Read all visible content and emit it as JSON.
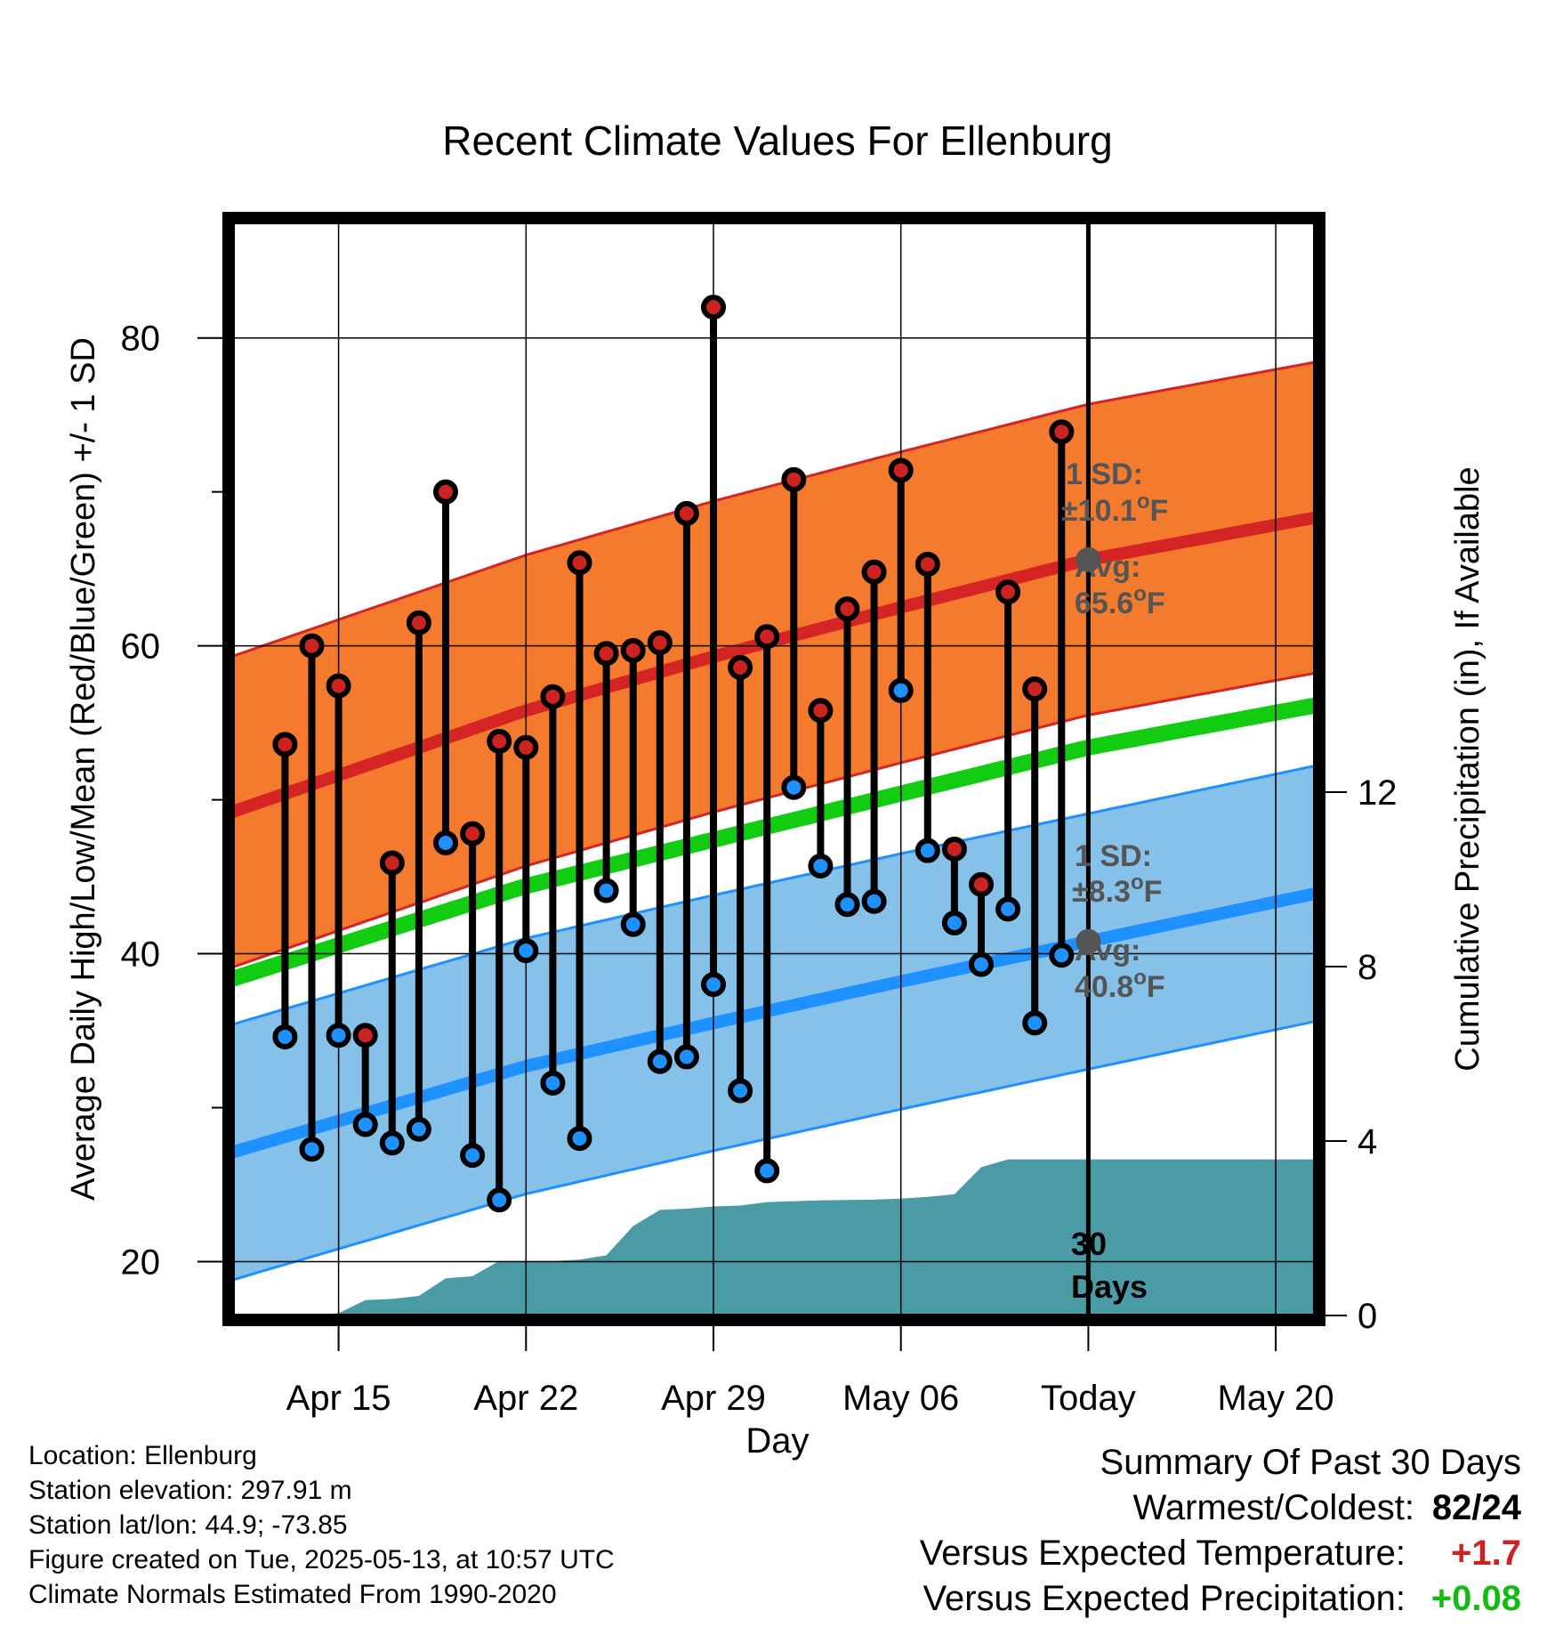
{
  "chart_data": {
    "type": "line",
    "title": "Recent Climate Values For Ellenburg",
    "xlabel": "Day",
    "ylabel": "Average Daily High/Low/Mean (Red/Blue/Green) +/- 1 SD",
    "y2label": "Cumulative Precipitation (in), If Available",
    "x_tick_labels": [
      "Apr 15",
      "Apr 22",
      "Apr 29",
      "May 06",
      "Today",
      "May 20"
    ],
    "ylim": [
      16.5,
      87.5
    ],
    "y_ticks": [
      20,
      40,
      60,
      80
    ],
    "y2lim": [
      0,
      20
    ],
    "y2_ticks": [
      0,
      4,
      8,
      12
    ],
    "grid": true,
    "today_marker": "May 13",
    "today_days_label": [
      "30",
      "Days"
    ],
    "normal_high": {
      "name": "Avg High",
      "x": [
        "Apr 12",
        "Apr 22",
        "Apr 29",
        "May 06",
        "May 13",
        "May 22"
      ],
      "mean": [
        49.8,
        55.8,
        59.3,
        62.5,
        65.6,
        68.5
      ],
      "sd": 10.1,
      "annotation": {
        "sd_label": "1 SD:",
        "sd_value": "±10.1°F",
        "avg_label": "Avg:",
        "avg_value": "65.6°F"
      }
    },
    "normal_low": {
      "name": "Avg Low",
      "x": [
        "Apr 12",
        "Apr 22",
        "Apr 29",
        "May 06",
        "May 13",
        "May 22"
      ],
      "mean": [
        27.6,
        32.7,
        35.5,
        38.2,
        40.8,
        44.1
      ],
      "sd": 8.3,
      "annotation": {
        "sd_label": "1 SD:",
        "sd_value": "±8.3°F",
        "avg_label": "Avg:",
        "avg_value": "40.8°F"
      }
    },
    "normal_mean": {
      "name": "Avg Mean",
      "x": [
        "Apr 12",
        "Apr 22",
        "Apr 29",
        "May 06",
        "May 13",
        "May 22"
      ],
      "values": [
        38.9,
        44.4,
        47.4,
        50.4,
        53.4,
        56.3
      ]
    },
    "daily": {
      "x": [
        "Apr 13",
        "Apr 14",
        "Apr 15",
        "Apr 16",
        "Apr 17",
        "Apr 18",
        "Apr 19",
        "Apr 20",
        "Apr 21",
        "Apr 22",
        "Apr 23",
        "Apr 24",
        "Apr 25",
        "Apr 26",
        "Apr 27",
        "Apr 28",
        "Apr 29",
        "Apr 30",
        "May 01",
        "May 02",
        "May 03",
        "May 04",
        "May 05",
        "May 06",
        "May 07",
        "May 08",
        "May 09",
        "May 10",
        "May 11",
        "May 12"
      ],
      "high": [
        53.6,
        60.0,
        57.4,
        34.7,
        45.9,
        61.5,
        70.0,
        47.8,
        53.8,
        53.4,
        56.7,
        65.4,
        59.5,
        59.7,
        60.2,
        68.6,
        82.0,
        58.6,
        60.6,
        70.8,
        55.8,
        62.4,
        64.8,
        71.4,
        65.3,
        46.8,
        44.5,
        63.5,
        57.2,
        73.9
      ],
      "low": [
        34.6,
        27.3,
        34.7,
        28.9,
        27.7,
        28.6,
        47.2,
        26.9,
        24.0,
        40.2,
        31.6,
        28.0,
        44.1,
        41.9,
        33.0,
        33.3,
        38.0,
        31.1,
        25.9,
        50.8,
        45.7,
        43.2,
        43.4,
        57.1,
        46.7,
        42.0,
        39.3,
        42.9,
        35.5,
        39.9
      ],
      "high_color": "#cc2222",
      "low_color": "#1e90ff"
    },
    "precip_cumulative": {
      "x": [
        "Apr 13",
        "Apr 14",
        "Apr 15",
        "Apr 16",
        "Apr 17",
        "Apr 18",
        "Apr 19",
        "Apr 20",
        "Apr 21",
        "Apr 22",
        "Apr 23",
        "Apr 24",
        "Apr 25",
        "Apr 26",
        "Apr 27",
        "Apr 28",
        "Apr 29",
        "Apr 30",
        "May 01",
        "May 02",
        "May 03",
        "May 04",
        "May 05",
        "May 06",
        "May 07",
        "May 08",
        "May 09",
        "May 10",
        "May 11",
        "May 12",
        "May 22"
      ],
      "values": [
        0,
        0,
        0.05,
        0.35,
        0.38,
        0.45,
        0.85,
        0.9,
        1.25,
        1.25,
        1.25,
        1.28,
        1.38,
        2.05,
        2.42,
        2.45,
        2.5,
        2.52,
        2.6,
        2.62,
        2.64,
        2.65,
        2.66,
        2.68,
        2.72,
        2.78,
        3.4,
        3.58,
        3.58,
        3.58,
        3.58
      ],
      "color": "#4a9ba5"
    },
    "colors": {
      "high_band": "#f47a2e",
      "high_line": "#d42424",
      "low_band": "#85c1e8",
      "low_line": "#1e90ff",
      "mean_line": "#11cc11",
      "annotation_text": "#555555",
      "marker_today": "#555555"
    }
  },
  "footer": {
    "location": "Location: Ellenburg",
    "elevation": "Station elevation: 297.91 m",
    "latlon": "Station lat/lon: 44.9; -73.85",
    "created": "Figure created on Tue, 2025-05-13, at 10:57 UTC",
    "normals": "Climate Normals Estimated From 1990-2020"
  },
  "summary": {
    "title": "Summary Of Past 30 Days",
    "warm_cold_label": "Warmest/Coldest:",
    "warm_value": "82",
    "cold_value": "/24",
    "temp_label": "Versus Expected Temperature:",
    "temp_value": "+1.7",
    "temp_color": "#cc2222",
    "precip_label": "Versus Expected Precipitation:",
    "precip_value": "+0.08",
    "precip_color": "#11bb11"
  }
}
